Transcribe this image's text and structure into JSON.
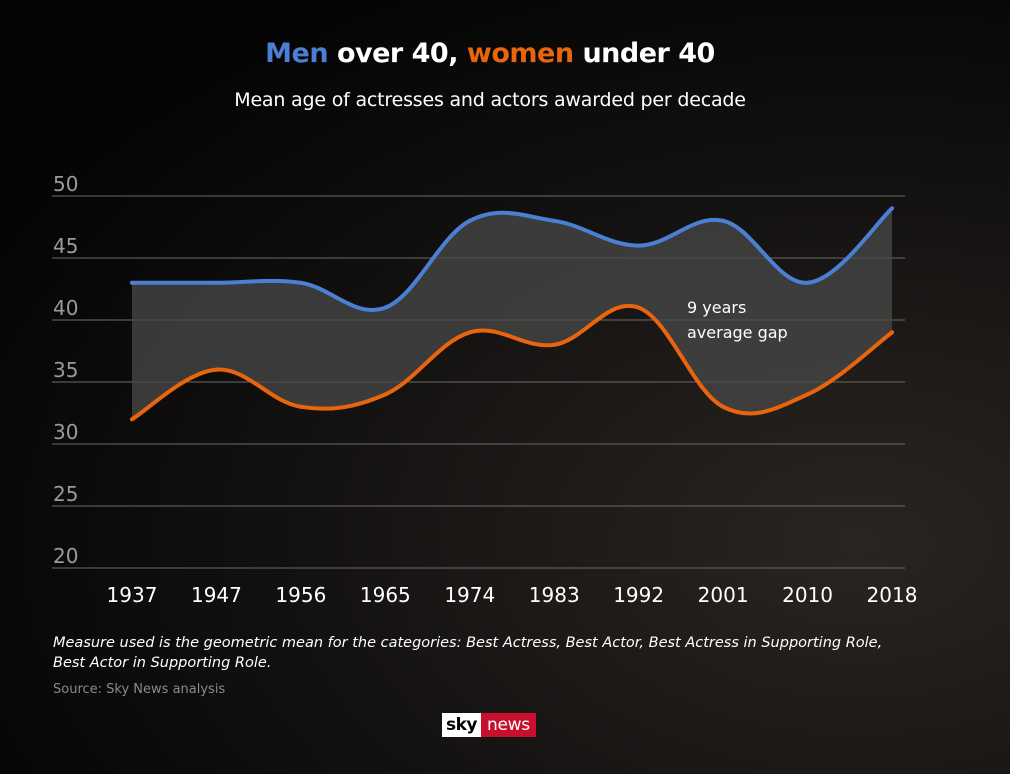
{
  "title": {
    "part1": "Men",
    "part2": " over 40, ",
    "part3": "women",
    "part4": " under 40"
  },
  "subtitle": "Mean age of actresses and actors awarded per decade",
  "annotation": {
    "line1": "9 years",
    "line2": "average gap"
  },
  "footnote": {
    "line1": "Measure used is the geometric mean for the categories: Best Actress, Best Actor, Best Actress in Supporting Role,",
    "line2": "Best Actor in Supporting Role."
  },
  "source": "Source: Sky News analysis",
  "logo": {
    "sky": "sky",
    "news": "news"
  },
  "colors": {
    "men": "#4a7fd4",
    "women": "#e8650e",
    "gap_fill": "#4a4a4a",
    "grid": "#6a6a6a",
    "text": "#ffffff",
    "brand_red": "#c8102e"
  },
  "chart_data": {
    "type": "line",
    "categories": [
      "1937",
      "1947",
      "1956",
      "1965",
      "1974",
      "1983",
      "1992",
      "2001",
      "2010",
      "2018"
    ],
    "yticks": [
      "50",
      "45",
      "40",
      "35",
      "30",
      "25",
      "20"
    ],
    "ylim": [
      20,
      50
    ],
    "grid": true,
    "series": [
      {
        "name": "Men",
        "values": [
          43,
          43,
          43,
          41,
          48,
          48,
          46,
          48,
          43,
          49
        ]
      },
      {
        "name": "Women",
        "values": [
          32,
          36,
          33,
          34,
          39,
          38,
          41,
          33,
          34,
          39
        ]
      }
    ],
    "shaded_between_series": true
  }
}
